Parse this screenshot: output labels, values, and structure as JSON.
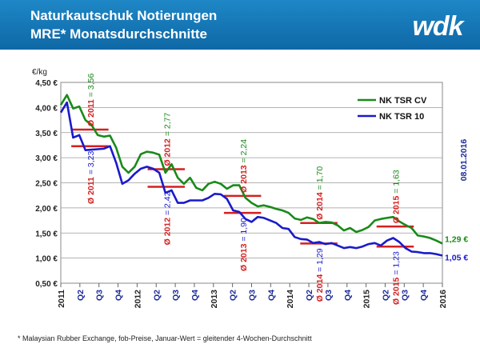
{
  "header": {
    "title_line1": "Naturkautschuk Notierungen",
    "title_line2": "MRE* Monatsdurchschnitte",
    "logo_text": "wdk",
    "background_color": "#1a7ec0"
  },
  "footnote": "* Malaysian Rubber Exchange, fob-Preise, Januar-Wert = gleitender 4-Wochen-Durchschnitt",
  "chart_data": {
    "type": "line",
    "ylabel": "€/kg",
    "ylim": [
      0.5,
      4.5
    ],
    "y_ticks": [
      "0,50 €",
      "1,00 €",
      "1,50 €",
      "2,00 €",
      "2,50 €",
      "3,00 €",
      "3,50 €",
      "4,00 €",
      "4,50 €"
    ],
    "x_labels": [
      "2011",
      "Q2",
      "Q3",
      "Q4",
      "2012",
      "Q2",
      "Q3",
      "Q4",
      "2013",
      "Q2",
      "Q3",
      "Q4",
      "2014",
      "Q2",
      "Q3",
      "Q4",
      "2015",
      "Q2",
      "Q3",
      "Q4",
      "2016"
    ],
    "grid": true,
    "legend_position": "top-right",
    "date_annotation": "08.01.2016",
    "series": [
      {
        "name": "NK TSR CV",
        "color": "#1a8a1a",
        "values": [
          4.05,
          4.25,
          3.98,
          4.02,
          3.75,
          3.65,
          3.45,
          3.42,
          3.44,
          3.2,
          2.82,
          2.7,
          2.82,
          3.07,
          3.12,
          3.1,
          3.06,
          2.7,
          2.87,
          2.6,
          2.48,
          2.6,
          2.4,
          2.35,
          2.48,
          2.52,
          2.48,
          2.38,
          2.45,
          2.45,
          2.2,
          2.1,
          2.03,
          2.05,
          2.02,
          1.98,
          1.95,
          1.9,
          1.79,
          1.76,
          1.81,
          1.78,
          1.7,
          1.72,
          1.71,
          1.65,
          1.55,
          1.6,
          1.52,
          1.56,
          1.62,
          1.75,
          1.78,
          1.8,
          1.82,
          1.73,
          1.66,
          1.6,
          1.45,
          1.43,
          1.4,
          1.35,
          1.29
        ],
        "end_label": "1,29 €"
      },
      {
        "name": "NK TSR 10",
        "color": "#1a1acc",
        "values": [
          3.9,
          4.1,
          3.4,
          3.45,
          3.15,
          3.16,
          3.17,
          3.18,
          3.23,
          2.9,
          2.48,
          2.55,
          2.68,
          2.78,
          2.82,
          2.78,
          2.7,
          2.3,
          2.35,
          2.1,
          2.1,
          2.15,
          2.15,
          2.15,
          2.2,
          2.28,
          2.27,
          2.18,
          1.95,
          1.92,
          1.78,
          1.72,
          1.82,
          1.8,
          1.75,
          1.7,
          1.6,
          1.58,
          1.42,
          1.38,
          1.37,
          1.3,
          1.32,
          1.28,
          1.3,
          1.25,
          1.2,
          1.22,
          1.2,
          1.23,
          1.28,
          1.3,
          1.25,
          1.35,
          1.4,
          1.32,
          1.2,
          1.13,
          1.12,
          1.1,
          1.1,
          1.08,
          1.05
        ],
        "end_label": "1,05 €"
      }
    ],
    "averages": [
      {
        "series": "NK TSR CV",
        "label": "Ø 2011 = 3,56",
        "value": 3.56,
        "year": 2011
      },
      {
        "series": "NK TSR 10",
        "label": "Ø 2011 = 3,23",
        "value": 3.23,
        "year": 2011
      },
      {
        "series": "NK TSR CV",
        "label": "Ø 2012 = 2,77",
        "value": 2.77,
        "year": 2012
      },
      {
        "series": "NK TSR 10",
        "label": "Ø 2012 = 2,42",
        "value": 2.42,
        "year": 2012
      },
      {
        "series": "NK TSR CV",
        "label": "Ø 2013 = 2,24",
        "value": 2.24,
        "year": 2013
      },
      {
        "series": "NK TSR 10",
        "label": "Ø 2013 = 1,90",
        "value": 1.9,
        "year": 2013
      },
      {
        "series": "NK TSR CV",
        "label": "Ø 2014 = 1,70",
        "value": 1.7,
        "year": 2014
      },
      {
        "series": "NK TSR 10",
        "label": "Ø 2014 = 1,29",
        "value": 1.29,
        "year": 2014
      },
      {
        "series": "NK TSR CV",
        "label": "Ø 2015 = 1,63",
        "value": 1.63,
        "year": 2015
      },
      {
        "series": "NK TSR 10",
        "label": "Ø 2015 = 1,23",
        "value": 1.23,
        "year": 2015
      }
    ],
    "average_line_color": "#d42020"
  }
}
